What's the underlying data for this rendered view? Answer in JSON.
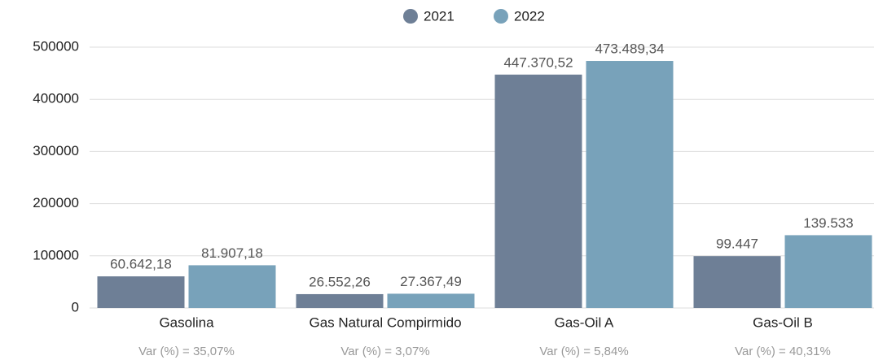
{
  "chart_data": {
    "type": "bar",
    "categories": [
      "Gasolina",
      "Gas Natural Compirmido",
      "Gas-Oil A",
      "Gas-Oil B"
    ],
    "annotations": [
      "Var (%) = 35,07%",
      "Var (%) = 3,07%",
      "Var (%) = 5,84%",
      "Var (%) = 40,31%"
    ],
    "series": [
      {
        "name": "2021",
        "color": "#6e7f96",
        "values": [
          60642.18,
          26552.26,
          447370.52,
          99447
        ],
        "value_labels": [
          "60.642,18",
          "26.552,26",
          "447.370,52",
          "99.447"
        ]
      },
      {
        "name": "2022",
        "color": "#78a2ba",
        "values": [
          81907.18,
          27367.49,
          473489.34,
          139533
        ],
        "value_labels": [
          "81.907,18",
          "27.367,49",
          "473.489,34",
          "139.533"
        ]
      }
    ],
    "ylim": [
      0,
      500000
    ],
    "yticks": [
      0,
      100000,
      200000,
      300000,
      400000,
      500000
    ],
    "grid": true,
    "legend": "top"
  }
}
